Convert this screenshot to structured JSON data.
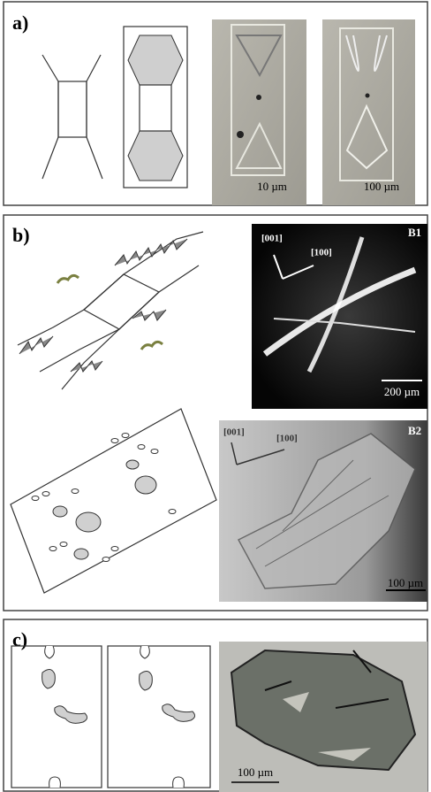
{
  "panels": [
    {
      "label": "a)",
      "scale_bars": [
        "10 µm",
        "100 µm"
      ]
    },
    {
      "label": "b)",
      "images": [
        {
          "label": "B1",
          "directions": [
            "[001]",
            "[100]"
          ],
          "scale_bar": "200 µm"
        },
        {
          "label": "B2",
          "directions": [
            "[001]",
            "[100]"
          ],
          "scale_bar": "100 µm"
        }
      ]
    },
    {
      "label": "c)",
      "scale_bar": "100 µm"
    }
  ]
}
